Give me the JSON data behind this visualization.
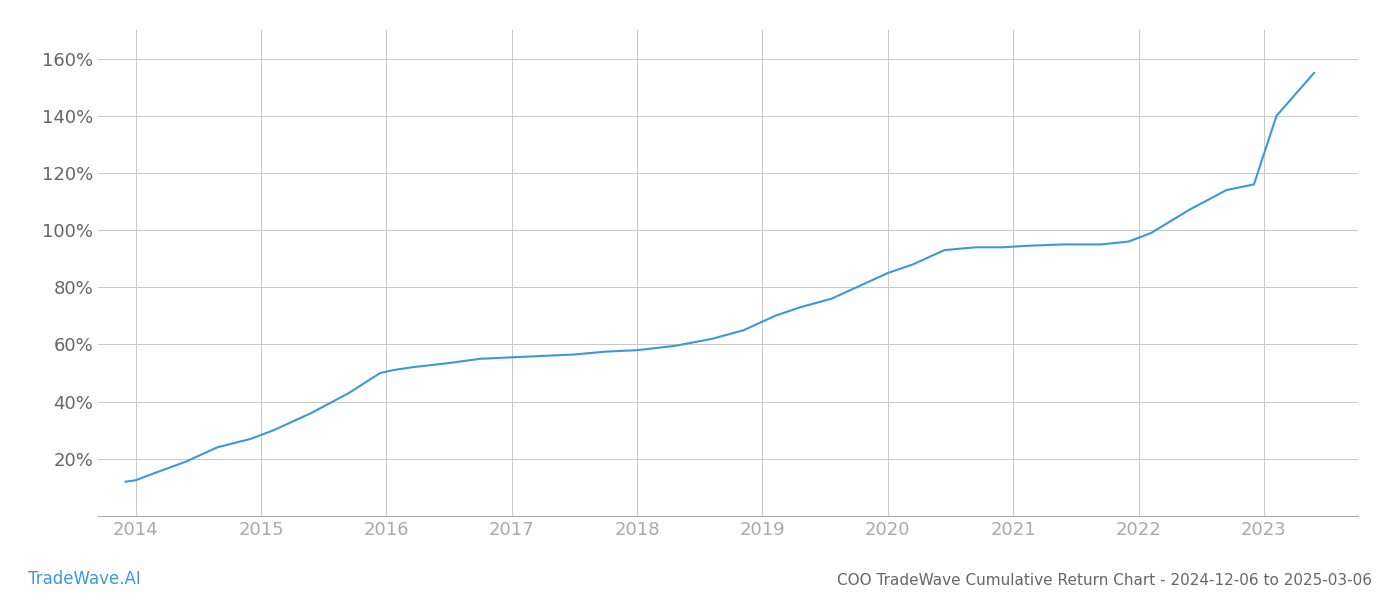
{
  "title": "COO TradeWave Cumulative Return Chart - 2024-12-06 to 2025-03-06",
  "watermark": "TradeWave.AI",
  "line_color": "#3a9ad9",
  "background_color": "#ffffff",
  "grid_color": "#c8c8c8",
  "x_years": [
    2014,
    2015,
    2016,
    2017,
    2018,
    2019,
    2020,
    2021,
    2022,
    2023
  ],
  "x_tick_color": "#aaaaaa",
  "y_tick_color": "#666666",
  "data_x": [
    2013.92,
    2014.0,
    2014.15,
    2014.4,
    2014.65,
    2014.92,
    2015.1,
    2015.4,
    2015.7,
    2015.95,
    2016.05,
    2016.2,
    2016.5,
    2016.75,
    2017.0,
    2017.25,
    2017.5,
    2017.75,
    2018.0,
    2018.1,
    2018.3,
    2018.6,
    2018.85,
    2019.1,
    2019.3,
    2019.55,
    2019.8,
    2020.0,
    2020.2,
    2020.45,
    2020.7,
    2020.92,
    2021.1,
    2021.4,
    2021.7,
    2021.92,
    2022.1,
    2022.4,
    2022.7,
    2022.92,
    2023.1,
    2023.4
  ],
  "data_y": [
    12,
    12.5,
    15,
    19,
    24,
    27,
    30,
    36,
    43,
    50,
    51,
    52,
    53.5,
    55,
    55.5,
    56,
    56.5,
    57.5,
    58,
    58.5,
    59.5,
    62,
    65,
    70,
    73,
    76,
    81,
    85,
    88,
    93,
    94,
    94,
    94.5,
    95,
    95,
    96,
    99,
    107,
    114,
    116,
    140,
    155
  ],
  "ylim": [
    0,
    170
  ],
  "yticks": [
    20,
    40,
    60,
    80,
    100,
    120,
    140,
    160
  ],
  "xlim": [
    2013.7,
    2023.75
  ],
  "line_width": 1.5,
  "title_fontsize": 11,
  "tick_fontsize": 13,
  "watermark_fontsize": 12
}
